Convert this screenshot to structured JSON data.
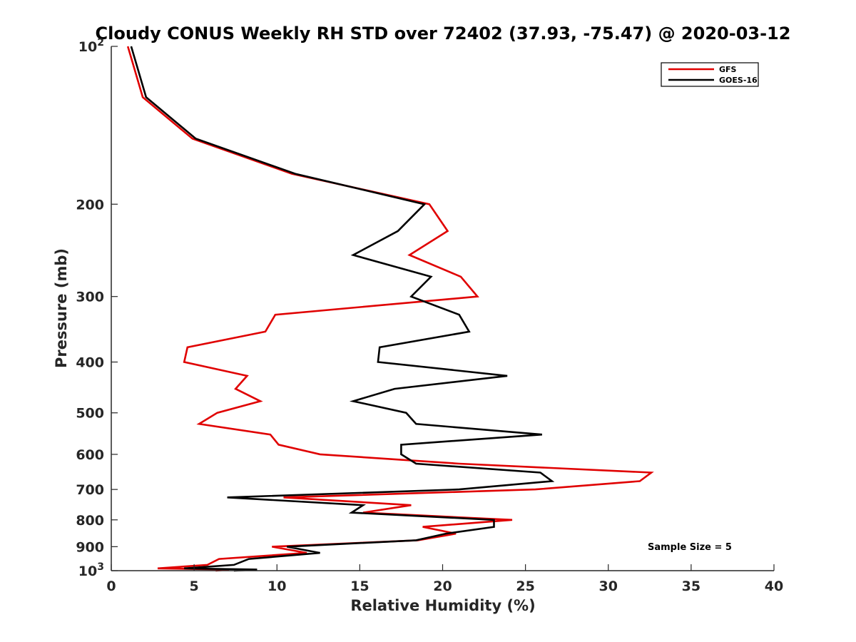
{
  "chart_data": {
    "type": "line",
    "title": "Cloudy CONUS Weekly RH STD over 72402 (37.93, -75.47) @ 2020-03-12",
    "xlabel": "Relative Humidity (%)",
    "ylabel": "Pressure (mb)",
    "xlim": [
      0,
      40
    ],
    "ylim": [
      100,
      1000
    ],
    "yscale": "log",
    "y_reversed": true,
    "grid": false,
    "legend_position": "top-right",
    "x_ticks": [
      "0",
      "5",
      "10",
      "15",
      "20",
      "25",
      "30",
      "35",
      "40"
    ],
    "x_tick_values": [
      0,
      5,
      10,
      15,
      20,
      25,
      30,
      35,
      40
    ],
    "y_ticks": [
      {
        "value": 100,
        "base": "10",
        "exp": "2"
      },
      {
        "value": 200,
        "label": "200"
      },
      {
        "value": 300,
        "label": "300"
      },
      {
        "value": 400,
        "label": "400"
      },
      {
        "value": 500,
        "label": "500"
      },
      {
        "value": 600,
        "label": "600"
      },
      {
        "value": 700,
        "label": "700"
      },
      {
        "value": 800,
        "label": "800"
      },
      {
        "value": 900,
        "label": "900"
      },
      {
        "value": 1000,
        "base": "10",
        "exp": "3"
      }
    ],
    "annotation": "Sample Size = 5",
    "series": [
      {
        "name": "GFS",
        "color": "#e00000",
        "points": [
          [
            1.0,
            100
          ],
          [
            1.9,
            125
          ],
          [
            4.9,
            150
          ],
          [
            10.9,
            175
          ],
          [
            19.2,
            200
          ],
          [
            20.3,
            225
          ],
          [
            18.0,
            250
          ],
          [
            21.1,
            275
          ],
          [
            22.1,
            300
          ],
          [
            9.9,
            325
          ],
          [
            9.3,
            350
          ],
          [
            4.6,
            375
          ],
          [
            4.4,
            400
          ],
          [
            8.2,
            425
          ],
          [
            7.5,
            450
          ],
          [
            9.0,
            475
          ],
          [
            6.4,
            500
          ],
          [
            5.3,
            525
          ],
          [
            9.6,
            550
          ],
          [
            10.1,
            575
          ],
          [
            12.6,
            600
          ],
          [
            21.0,
            625
          ],
          [
            32.6,
            650
          ],
          [
            31.9,
            675
          ],
          [
            25.6,
            700
          ],
          [
            10.4,
            725
          ],
          [
            18.1,
            750
          ],
          [
            15.2,
            775
          ],
          [
            24.2,
            800
          ],
          [
            18.8,
            825
          ],
          [
            20.8,
            850
          ],
          [
            18.5,
            875
          ],
          [
            9.7,
            900
          ],
          [
            11.8,
            925
          ],
          [
            6.5,
            950
          ],
          [
            5.8,
            975
          ],
          [
            2.8,
            990
          ],
          [
            7.1,
            995
          ],
          [
            6.3,
            1000
          ]
        ]
      },
      {
        "name": "GOES-16",
        "color": "#000000",
        "points": [
          [
            1.2,
            100
          ],
          [
            2.1,
            125
          ],
          [
            5.1,
            150
          ],
          [
            11.1,
            175
          ],
          [
            18.9,
            200
          ],
          [
            17.3,
            225
          ],
          [
            14.6,
            250
          ],
          [
            19.3,
            275
          ],
          [
            18.1,
            300
          ],
          [
            21.0,
            325
          ],
          [
            21.6,
            350
          ],
          [
            16.2,
            375
          ],
          [
            16.1,
            400
          ],
          [
            23.9,
            425
          ],
          [
            17.1,
            450
          ],
          [
            14.6,
            475
          ],
          [
            17.8,
            500
          ],
          [
            18.4,
            525
          ],
          [
            26.0,
            550
          ],
          [
            17.5,
            575
          ],
          [
            17.5,
            600
          ],
          [
            18.4,
            625
          ],
          [
            25.9,
            650
          ],
          [
            26.6,
            675
          ],
          [
            21.0,
            700
          ],
          [
            7.0,
            725
          ],
          [
            15.2,
            750
          ],
          [
            14.5,
            775
          ],
          [
            23.1,
            800
          ],
          [
            23.1,
            825
          ],
          [
            20.2,
            850
          ],
          [
            18.4,
            875
          ],
          [
            10.6,
            900
          ],
          [
            12.6,
            925
          ],
          [
            8.3,
            950
          ],
          [
            7.4,
            975
          ],
          [
            4.4,
            990
          ],
          [
            8.8,
            995
          ],
          [
            7.4,
            1000
          ]
        ]
      }
    ]
  }
}
